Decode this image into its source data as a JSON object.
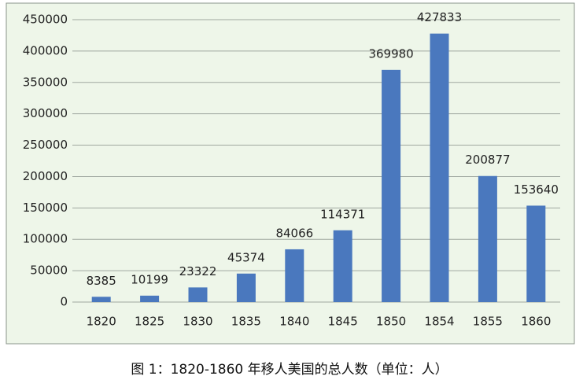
{
  "chart_data": {
    "type": "bar",
    "caption": "图 1：1820-1860 年移人美国的总人数（单位：人）",
    "categories": [
      "1820",
      "1825",
      "1830",
      "1835",
      "1840",
      "1845",
      "1850",
      "1854",
      "1855",
      "1860"
    ],
    "values": [
      8385,
      10199,
      23322,
      45374,
      84066,
      114371,
      369980,
      427833,
      200877,
      153640
    ],
    "color": "#4a78be",
    "ylim": [
      0,
      450000
    ],
    "yticks": [
      0,
      50000,
      100000,
      150000,
      200000,
      250000,
      300000,
      350000,
      400000,
      450000
    ],
    "grid": true
  }
}
